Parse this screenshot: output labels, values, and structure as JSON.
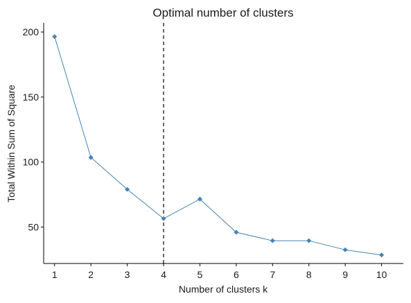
{
  "chart_data": {
    "type": "line",
    "title": "Optimal number of clusters",
    "xlabel": "Number of clusters k",
    "ylabel": "Total Within Sum of Square",
    "x": [
      1,
      2,
      3,
      4,
      5,
      6,
      7,
      8,
      9,
      10
    ],
    "series": [
      {
        "values": [
          196.5,
          103.5,
          79,
          56.5,
          71.5,
          46,
          39.5,
          39.5,
          32.5,
          28.5
        ],
        "color": "#4682b4"
      }
    ],
    "xlim": [
      0.7,
      10.6
    ],
    "ylim": [
      22,
      207
    ],
    "yticks": [
      50,
      100,
      150,
      200
    ],
    "xticks": [
      1,
      2,
      3,
      4,
      5,
      6,
      7,
      8,
      9,
      10
    ],
    "vline": {
      "x": 4,
      "style": "dashed",
      "color": "#000000"
    },
    "marker": "diamond",
    "grid": false,
    "legend": "none"
  }
}
